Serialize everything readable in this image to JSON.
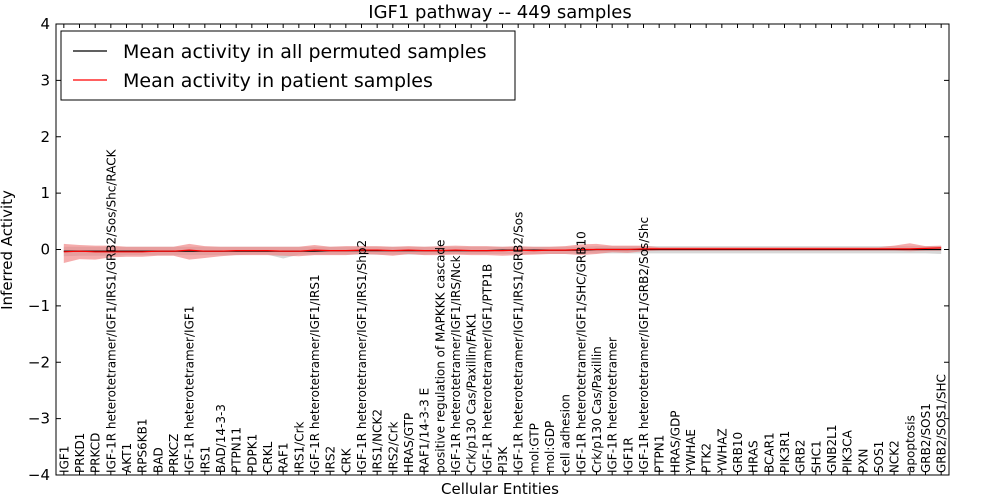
{
  "chart_data": {
    "type": "line",
    "title": "IGF1 pathway -- 449 samples",
    "xlabel": "Cellular Entities",
    "ylabel": "Inferred Activity",
    "ylim": [
      -4,
      4
    ],
    "yticks": [
      {
        "value": -4,
        "label": "−4"
      },
      {
        "value": -3,
        "label": "−3"
      },
      {
        "value": -2,
        "label": "−2"
      },
      {
        "value": -1,
        "label": "−1"
      },
      {
        "value": 0,
        "label": "0"
      },
      {
        "value": 1,
        "label": "1"
      },
      {
        "value": 2,
        "label": "2"
      },
      {
        "value": 3,
        "label": "3"
      },
      {
        "value": 4,
        "label": "4"
      }
    ],
    "grid": false,
    "legend_position": "top-left",
    "categories": [
      "IGF1",
      "PRKD1",
      "PRKCD",
      "IGF-1R heterotetramer/IGF1/IRS1/GRB2/Sos/Shc/RACK",
      "AKT1",
      "RPS6KB1",
      "BAD",
      "PRKCZ",
      "IGF-1R heterotetramer/IGF1",
      "IRS1",
      "BAD/14-3-3",
      "PTPN11",
      "PDPK1",
      "CRKL",
      "RAF1",
      "IRS1/Crk",
      "IGF-1R heterotetramer/IGF1/IRS1",
      "IRS2",
      "CRK",
      "IGF-1R heterotetramer/IGF1/IRS1/Shp2",
      "IRS1/NCK2",
      "IRS2/Crk",
      "HRAS/GTP",
      "RAF1/14-3-3 E",
      "positive regulation of MAPKKK cascade",
      "IGF-1R heterotetramer/IGF1/IRS/Nck",
      "Crk/p130 Cas/Paxillin/FAK1",
      "IGF-1R heterotetramer/IGF1/PTP1B",
      "PI3K",
      "IGF-1R heterotetramer/IGF1/IRS1/GRB2/Sos",
      "mol:GTP",
      "mol:GDP",
      "cell adhesion",
      "IGF-1R heterotetramer/IGF1/SHC/GRB10",
      "Crk/p130 Cas/Paxillin",
      "IGF-1R heterotetramer",
      "IGF1R",
      "IGF-1R heterotetramer/IGF1/GRB2/Sos/Shc",
      "PTPN1",
      "HRAS/GDP",
      "YWHAE",
      "PTK2",
      "YWHAZ",
      "GRB10",
      "HRAS",
      "BCAR1",
      "PIK3R1",
      "GRB2",
      "SHC1",
      "GNB2L1",
      "PIK3CA",
      "PXN",
      "SOS1",
      "NCK2",
      "apoptosis",
      "GRB2/SOS1",
      "GRB2/SOS1/SHC"
    ],
    "series": [
      {
        "name": "Mean activity in all permuted samples",
        "color": "#000000",
        "band_color": "#b0b0b0",
        "values": [
          -0.03,
          -0.03,
          -0.03,
          -0.03,
          -0.03,
          -0.03,
          -0.03,
          -0.03,
          -0.03,
          -0.03,
          -0.03,
          -0.03,
          -0.03,
          -0.03,
          -0.03,
          -0.03,
          -0.03,
          -0.02,
          -0.02,
          -0.02,
          -0.02,
          -0.02,
          -0.02,
          -0.02,
          -0.02,
          -0.02,
          -0.02,
          -0.02,
          -0.01,
          -0.01,
          -0.01,
          -0.01,
          -0.01,
          -0.01,
          0.0,
          0.0,
          0.0,
          0.0,
          0.0,
          0.0,
          0.0,
          0.0,
          0.0,
          0.0,
          0.0,
          0.0,
          0.0,
          0.0,
          0.0,
          0.0,
          0.0,
          0.0,
          0.0,
          0.0,
          0.0,
          0.0,
          0.0
        ],
        "band_low": [
          -0.12,
          -0.11,
          -0.11,
          -0.11,
          -0.1,
          -0.1,
          -0.1,
          -0.1,
          -0.1,
          -0.1,
          -0.1,
          -0.1,
          -0.09,
          -0.09,
          -0.16,
          -0.09,
          -0.09,
          -0.09,
          -0.09,
          -0.09,
          -0.09,
          -0.09,
          -0.09,
          -0.09,
          -0.08,
          -0.08,
          -0.08,
          -0.08,
          -0.08,
          -0.08,
          -0.08,
          -0.08,
          -0.08,
          -0.07,
          -0.07,
          -0.07,
          -0.07,
          -0.07,
          -0.07,
          -0.07,
          -0.07,
          -0.07,
          -0.07,
          -0.07,
          -0.07,
          -0.07,
          -0.07,
          -0.07,
          -0.07,
          -0.07,
          -0.07,
          -0.07,
          -0.07,
          -0.07,
          -0.07,
          -0.07,
          -0.08
        ],
        "band_high": [
          0.05,
          0.05,
          0.05,
          0.05,
          0.05,
          0.05,
          0.05,
          0.05,
          0.05,
          0.05,
          0.05,
          0.05,
          0.05,
          0.05,
          0.05,
          0.05,
          0.05,
          0.05,
          0.05,
          0.05,
          0.05,
          0.05,
          0.05,
          0.05,
          0.05,
          0.05,
          0.05,
          0.05,
          0.05,
          0.05,
          0.05,
          0.05,
          0.05,
          0.05,
          0.06,
          0.06,
          0.06,
          0.06,
          0.06,
          0.06,
          0.06,
          0.06,
          0.06,
          0.06,
          0.06,
          0.06,
          0.06,
          0.06,
          0.06,
          0.06,
          0.06,
          0.06,
          0.06,
          0.06,
          0.06,
          0.06,
          0.06
        ]
      },
      {
        "name": "Mean activity in patient samples",
        "color": "#ff0000",
        "band_color": "#f08080",
        "values": [
          -0.04,
          -0.03,
          -0.04,
          -0.04,
          -0.04,
          -0.04,
          -0.03,
          -0.03,
          -0.01,
          -0.03,
          -0.03,
          -0.02,
          -0.02,
          -0.02,
          -0.03,
          -0.03,
          -0.01,
          -0.02,
          -0.02,
          -0.01,
          -0.01,
          -0.02,
          -0.01,
          -0.02,
          -0.02,
          -0.01,
          -0.02,
          -0.02,
          -0.02,
          -0.01,
          -0.02,
          -0.01,
          -0.01,
          0.0,
          0.0,
          0.0,
          0.0,
          0.01,
          0.01,
          0.01,
          0.01,
          0.01,
          0.01,
          0.01,
          0.01,
          0.01,
          0.01,
          0.01,
          0.01,
          0.01,
          0.01,
          0.01,
          0.01,
          0.01,
          0.01,
          0.02,
          0.03
        ],
        "band_low": [
          -0.24,
          -0.17,
          -0.18,
          -0.14,
          -0.13,
          -0.13,
          -0.11,
          -0.11,
          -0.18,
          -0.15,
          -0.12,
          -0.1,
          -0.1,
          -0.1,
          -0.11,
          -0.12,
          -0.1,
          -0.1,
          -0.1,
          -0.08,
          -0.09,
          -0.11,
          -0.08,
          -0.1,
          -0.1,
          -0.09,
          -0.1,
          -0.1,
          -0.11,
          -0.1,
          -0.09,
          -0.08,
          -0.08,
          -0.1,
          -0.08,
          -0.05,
          -0.06,
          -0.03,
          -0.02,
          -0.02,
          -0.02,
          -0.02,
          -0.02,
          -0.02,
          -0.02,
          -0.02,
          -0.02,
          -0.02,
          -0.02,
          -0.02,
          -0.02,
          -0.02,
          -0.02,
          -0.02,
          -0.03,
          -0.02,
          -0.02
        ],
        "band_high": [
          0.1,
          0.08,
          0.07,
          0.07,
          0.05,
          0.05,
          0.05,
          0.05,
          0.1,
          0.06,
          0.05,
          0.05,
          0.05,
          0.05,
          0.05,
          0.05,
          0.08,
          0.05,
          0.06,
          0.06,
          0.06,
          0.05,
          0.06,
          0.05,
          0.06,
          0.07,
          0.06,
          0.06,
          0.05,
          0.06,
          0.05,
          0.05,
          0.06,
          0.09,
          0.1,
          0.07,
          0.07,
          0.07,
          0.04,
          0.04,
          0.04,
          0.04,
          0.04,
          0.04,
          0.04,
          0.04,
          0.04,
          0.04,
          0.04,
          0.04,
          0.04,
          0.04,
          0.04,
          0.07,
          0.11,
          0.06,
          0.07
        ]
      }
    ]
  }
}
